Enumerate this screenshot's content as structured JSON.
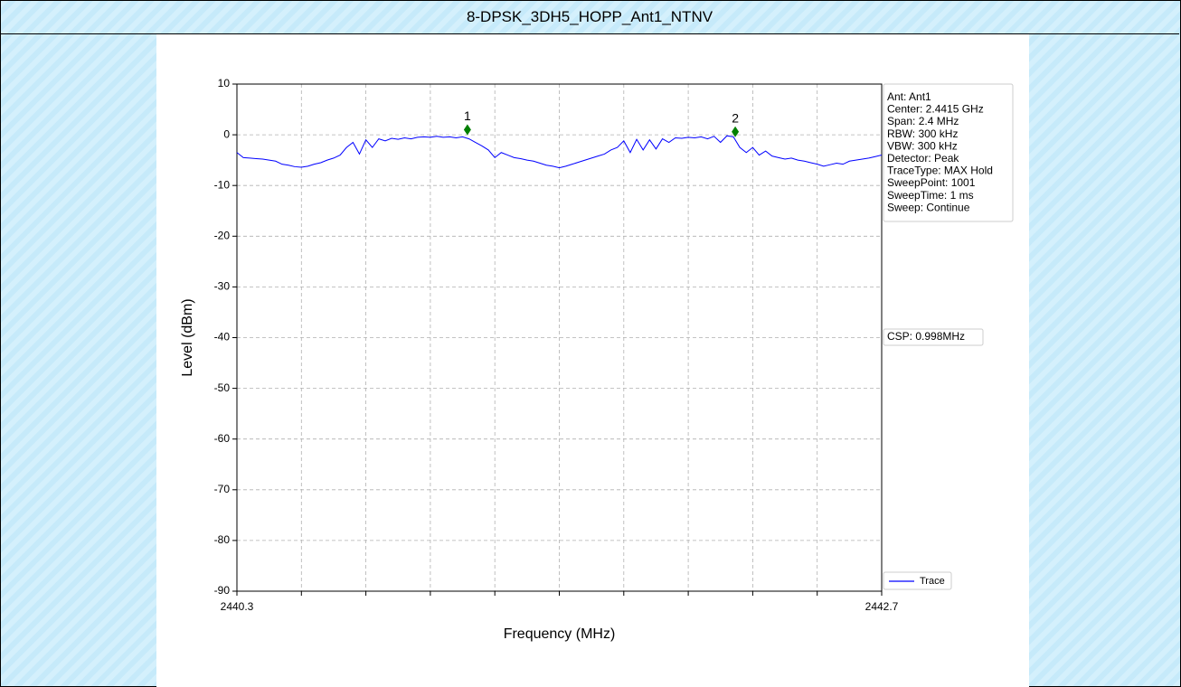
{
  "page_title": "8-DPSK_3DH5_HOPP_Ant1_NTNV",
  "chart_data": {
    "type": "line",
    "ylabel": "Level (dBm)",
    "xlabel": "Frequency (MHz)",
    "xlim": [
      2440.3,
      2442.7
    ],
    "xticks": [
      2440.3,
      {
        "value": 2440.54,
        "label": null
      },
      {
        "value": 2440.78,
        "label": null
      },
      {
        "value": 2441.02,
        "label": null
      },
      {
        "value": 2441.26,
        "label": null
      },
      {
        "value": 2441.5,
        "label": null
      },
      {
        "value": 2441.74,
        "label": null
      },
      {
        "value": 2441.98,
        "label": null
      },
      {
        "value": 2442.22,
        "label": null
      },
      {
        "value": 2442.46,
        "label": null
      },
      2442.7
    ],
    "ylim": [
      -90,
      10
    ],
    "yticks": [
      10,
      0,
      -10,
      -20,
      -30,
      -40,
      -50,
      -60,
      -70,
      -80,
      -90
    ],
    "grid": true,
    "legend": "lower right",
    "x": [
      2440.3,
      2440.324,
      2440.348,
      2440.372,
      2440.396,
      2440.42,
      2440.444,
      2440.468,
      2440.492,
      2440.516,
      2440.54,
      2440.564,
      2440.588,
      2440.612,
      2440.636,
      2440.66,
      2440.684,
      2440.708,
      2440.732,
      2440.756,
      2440.78,
      2440.804,
      2440.828,
      2440.852,
      2440.876,
      2440.9,
      2440.924,
      2440.948,
      2440.972,
      2440.996,
      2441.02,
      2441.044,
      2441.068,
      2441.092,
      2441.116,
      2441.14,
      2441.164,
      2441.188,
      2441.212,
      2441.236,
      2441.26,
      2441.284,
      2441.308,
      2441.332,
      2441.356,
      2441.38,
      2441.404,
      2441.428,
      2441.452,
      2441.476,
      2441.5,
      2441.524,
      2441.548,
      2441.572,
      2441.596,
      2441.62,
      2441.644,
      2441.668,
      2441.692,
      2441.716,
      2441.74,
      2441.764,
      2441.788,
      2441.812,
      2441.836,
      2441.86,
      2441.884,
      2441.908,
      2441.932,
      2441.956,
      2441.98,
      2442.004,
      2442.028,
      2442.052,
      2442.076,
      2442.1,
      2442.124,
      2442.148,
      2442.172,
      2442.196,
      2442.22,
      2442.244,
      2442.268,
      2442.292,
      2442.316,
      2442.34,
      2442.364,
      2442.388,
      2442.412,
      2442.436,
      2442.46,
      2442.484,
      2442.508,
      2442.532,
      2442.556,
      2442.58,
      2442.604,
      2442.628,
      2442.652,
      2442.676,
      2442.7
    ],
    "series": [
      {
        "name": "Trace",
        "color": "#0000ff",
        "values": [
          -3.5,
          -4.5,
          -4.6,
          -4.7,
          -4.8,
          -5.0,
          -5.2,
          -5.8,
          -6.0,
          -6.3,
          -6.4,
          -6.2,
          -5.8,
          -5.5,
          -5.0,
          -4.6,
          -4.0,
          -2.5,
          -1.5,
          -3.8,
          -1.0,
          -2.5,
          -0.8,
          -1.2,
          -0.7,
          -0.9,
          -0.6,
          -0.8,
          -0.5,
          -0.4,
          -0.5,
          -0.3,
          -0.5,
          -0.4,
          -0.6,
          -0.4,
          -0.8,
          -1.5,
          -2.2,
          -3.0,
          -4.5,
          -3.5,
          -4.0,
          -4.5,
          -4.7,
          -5.0,
          -5.2,
          -5.6,
          -6.0,
          -6.2,
          -6.5,
          -6.2,
          -5.8,
          -5.4,
          -5.0,
          -4.6,
          -4.2,
          -3.8,
          -3.0,
          -2.5,
          -1.2,
          -3.5,
          -0.9,
          -3.0,
          -1.0,
          -2.8,
          -0.8,
          -1.5,
          -0.6,
          -0.7,
          -0.5,
          -0.6,
          -0.4,
          -0.8,
          -0.3,
          -1.5,
          -0.2,
          -0.4,
          -2.5,
          -3.5,
          -2.5,
          -4.0,
          -3.2,
          -4.2,
          -4.5,
          -4.8,
          -4.6,
          -5.0,
          -5.2,
          -5.5,
          -5.8,
          -6.2,
          -5.9,
          -5.6,
          -5.8,
          -5.2,
          -5.0,
          -4.8,
          -4.6,
          -4.3,
          -4.0
        ]
      }
    ],
    "markers": [
      {
        "label": "1",
        "x": 2441.158,
        "y": 1.0
      },
      {
        "label": "2",
        "x": 2442.155,
        "y": 0.6
      }
    ],
    "marker_color": "#007f00",
    "info": [
      "Ant: Ant1",
      "Center: 2.4415 GHz",
      "Span: 2.4 MHz",
      "RBW: 300 kHz",
      "VBW: 300 kHz",
      "Detector: Peak",
      "TraceType: MAX Hold",
      "SweepPoint: 1001",
      "SweepTime: 1 ms",
      "Sweep: Continue"
    ],
    "annotation": "CSP: 0.998MHz"
  }
}
